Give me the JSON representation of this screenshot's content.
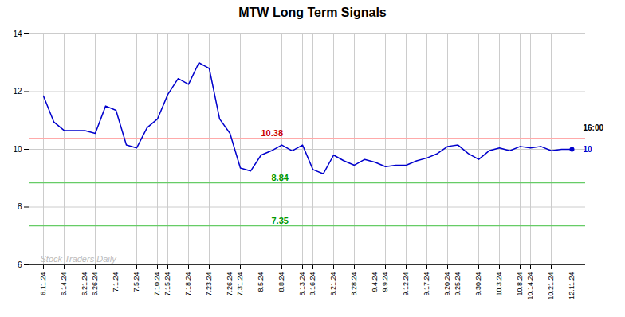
{
  "chart_data": {
    "type": "line",
    "title": "MTW Long Term Signals",
    "categories": [
      "6.11.24",
      null,
      "6.14.24",
      null,
      "6.21.24",
      "6.26.24",
      null,
      "7.1.24",
      null,
      "7.5.24",
      null,
      "7.10.24",
      "7.15.24",
      null,
      "7.18.24",
      null,
      "7.23.24",
      null,
      "7.26.24",
      "7.31.24",
      null,
      "8.5.24",
      null,
      "8.8.24",
      null,
      "8.13.24",
      "8.16.24",
      null,
      "8.21.24",
      null,
      "8.28.24",
      null,
      "9.4.24",
      "9.9.24",
      null,
      "9.12.24",
      null,
      "9.17.24",
      null,
      "9.20.24",
      "9.25.24",
      null,
      "9.30.24",
      null,
      "10.3.24",
      null,
      "10.8.24",
      "10.14.24",
      null,
      "10.21.24",
      null,
      "12.11.24"
    ],
    "values": [
      11.85,
      10.95,
      10.65,
      10.65,
      10.65,
      10.55,
      11.5,
      11.35,
      10.15,
      10.05,
      10.75,
      11.05,
      11.9,
      12.45,
      12.25,
      13.0,
      12.8,
      11.05,
      10.55,
      9.35,
      9.25,
      9.8,
      9.95,
      10.15,
      9.95,
      10.15,
      9.3,
      9.15,
      9.8,
      9.6,
      9.45,
      9.65,
      9.55,
      9.4,
      9.45,
      9.45,
      9.6,
      9.7,
      9.85,
      10.1,
      10.15,
      9.85,
      9.65,
      9.95,
      10.05,
      9.95,
      10.1,
      10.05,
      10.1,
      9.95,
      10.0,
      10.0
    ],
    "color": "#0000cc",
    "ylim": [
      6,
      14
    ],
    "yticks": [
      6,
      8,
      10,
      12,
      14
    ],
    "grid": true,
    "hlines": [
      {
        "value": 10.38,
        "color": "#ffaaaa",
        "label": "10.38",
        "label_color": "#cc0000"
      },
      {
        "value": 8.84,
        "color": "#66cc66",
        "label": "8.84",
        "label_color": "#009900"
      },
      {
        "value": 7.35,
        "color": "#66cc66",
        "label": "7.35",
        "label_color": "#009900"
      }
    ],
    "annotations": [
      {
        "text": "16:00",
        "color": "#000000"
      },
      {
        "text": "10",
        "color": "#0000cc"
      }
    ],
    "watermark": {
      "text": "Stock Traders Daily",
      "color": "#bbbbbb"
    }
  }
}
